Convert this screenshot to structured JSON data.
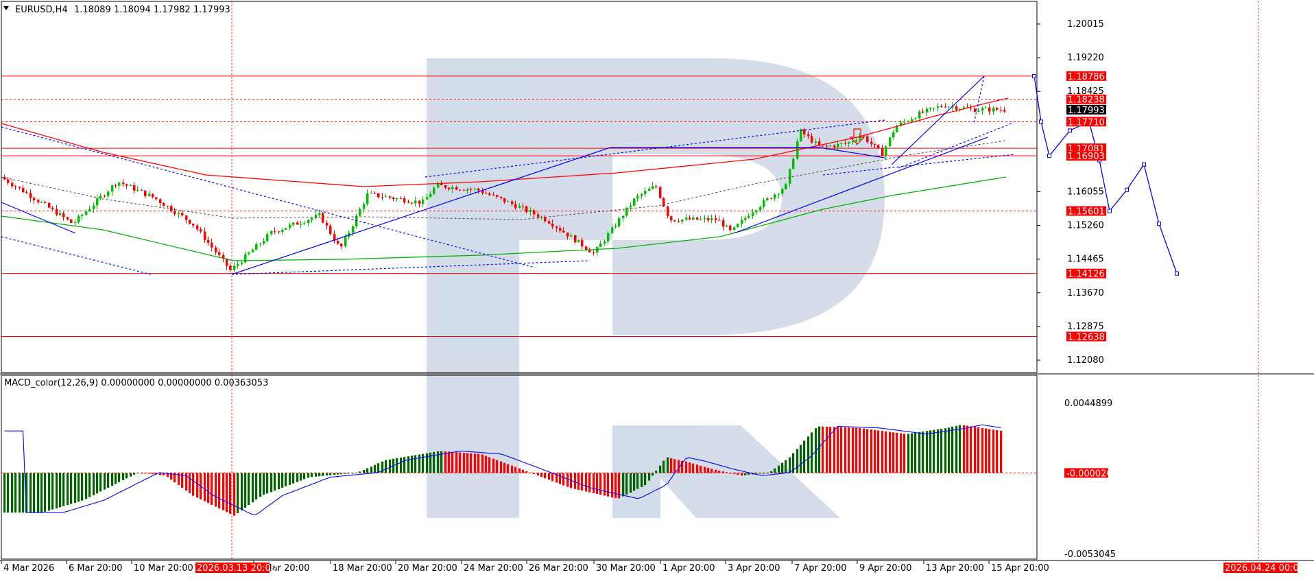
{
  "chart_data": [
    {
      "type": "candlestick",
      "symbol_label": "EURUSD,H4",
      "ohlc_label": [
        "1.18089",
        "1.18094",
        "1.17982",
        "1.17993"
      ],
      "y_ticks": [
        "1.20015",
        "1.19220",
        "1.18425",
        "1.16055",
        "1.15260",
        "1.14465",
        "1.13670",
        "1.12875",
        "1.12080"
      ],
      "price_tags": [
        {
          "value": 1.18786,
          "label": "1.18786",
          "bg": "#ff0000",
          "line": "solid"
        },
        {
          "value": 1.18238,
          "label": "1.18238",
          "bg": "#ff0000",
          "line": "dashed"
        },
        {
          "value": 1.17993,
          "label": "1.17993",
          "bg": "#000000",
          "line": "none"
        },
        {
          "value": 1.1771,
          "label": "1.17710",
          "bg": "#ff0000",
          "line": "dashed"
        },
        {
          "value": 1.17081,
          "label": "1.17081",
          "bg": "#ff0000",
          "line": "solid"
        },
        {
          "value": 1.16903,
          "label": "1.16903",
          "bg": "#ff0000",
          "line": "solid"
        },
        {
          "value": 1.15601,
          "label": "1.15601",
          "bg": "#ff0000",
          "line": "dashed"
        },
        {
          "value": 1.14126,
          "label": "1.14126",
          "bg": "#ff0000",
          "line": "solid"
        },
        {
          "value": 1.12638,
          "label": "1.12638",
          "bg": "#ff0000",
          "line": "solid"
        }
      ],
      "x_ticks": [
        "4 Mar 2026",
        "6 Mar 20:00",
        "10 Mar 20:00",
        "6 Mar 20:00",
        "18 Mar 20:00",
        "20 Mar 20:00",
        "24 Mar 20:00",
        "26 Mar 20:00",
        "30 Mar 20:00",
        "1 Apr 20:00",
        "3 Apr 20:00",
        "7 Apr 20:00",
        "9 Apr 20:00",
        "13 Apr 20:00",
        "15 Apr 20:00"
      ],
      "x_markers": [
        "2026.03.13 20:00",
        "2026.04.24 00:00"
      ],
      "forecast_path": [
        1.18786,
        1.1771,
        1.16903,
        1.175,
        1.1771,
        1.168,
        1.15601,
        1.161,
        1.167,
        1.153,
        1.14126
      ],
      "colors": {
        "bull": "#00c000",
        "bear": "#ff0000",
        "ma_slow": "#ff0000",
        "ma_fast": "#00b000",
        "trend": "#0000ff"
      }
    },
    {
      "type": "macd",
      "label": "MACD_color(12,26,9) 0.00000000 0.00000000 0.00363053",
      "y_ticks": [
        "0.0044899",
        "-0.000026",
        "-0.0053045"
      ],
      "colors": {
        "rising": "#006400",
        "falling": "#ff0000",
        "signal": "#0000ff"
      }
    }
  ]
}
